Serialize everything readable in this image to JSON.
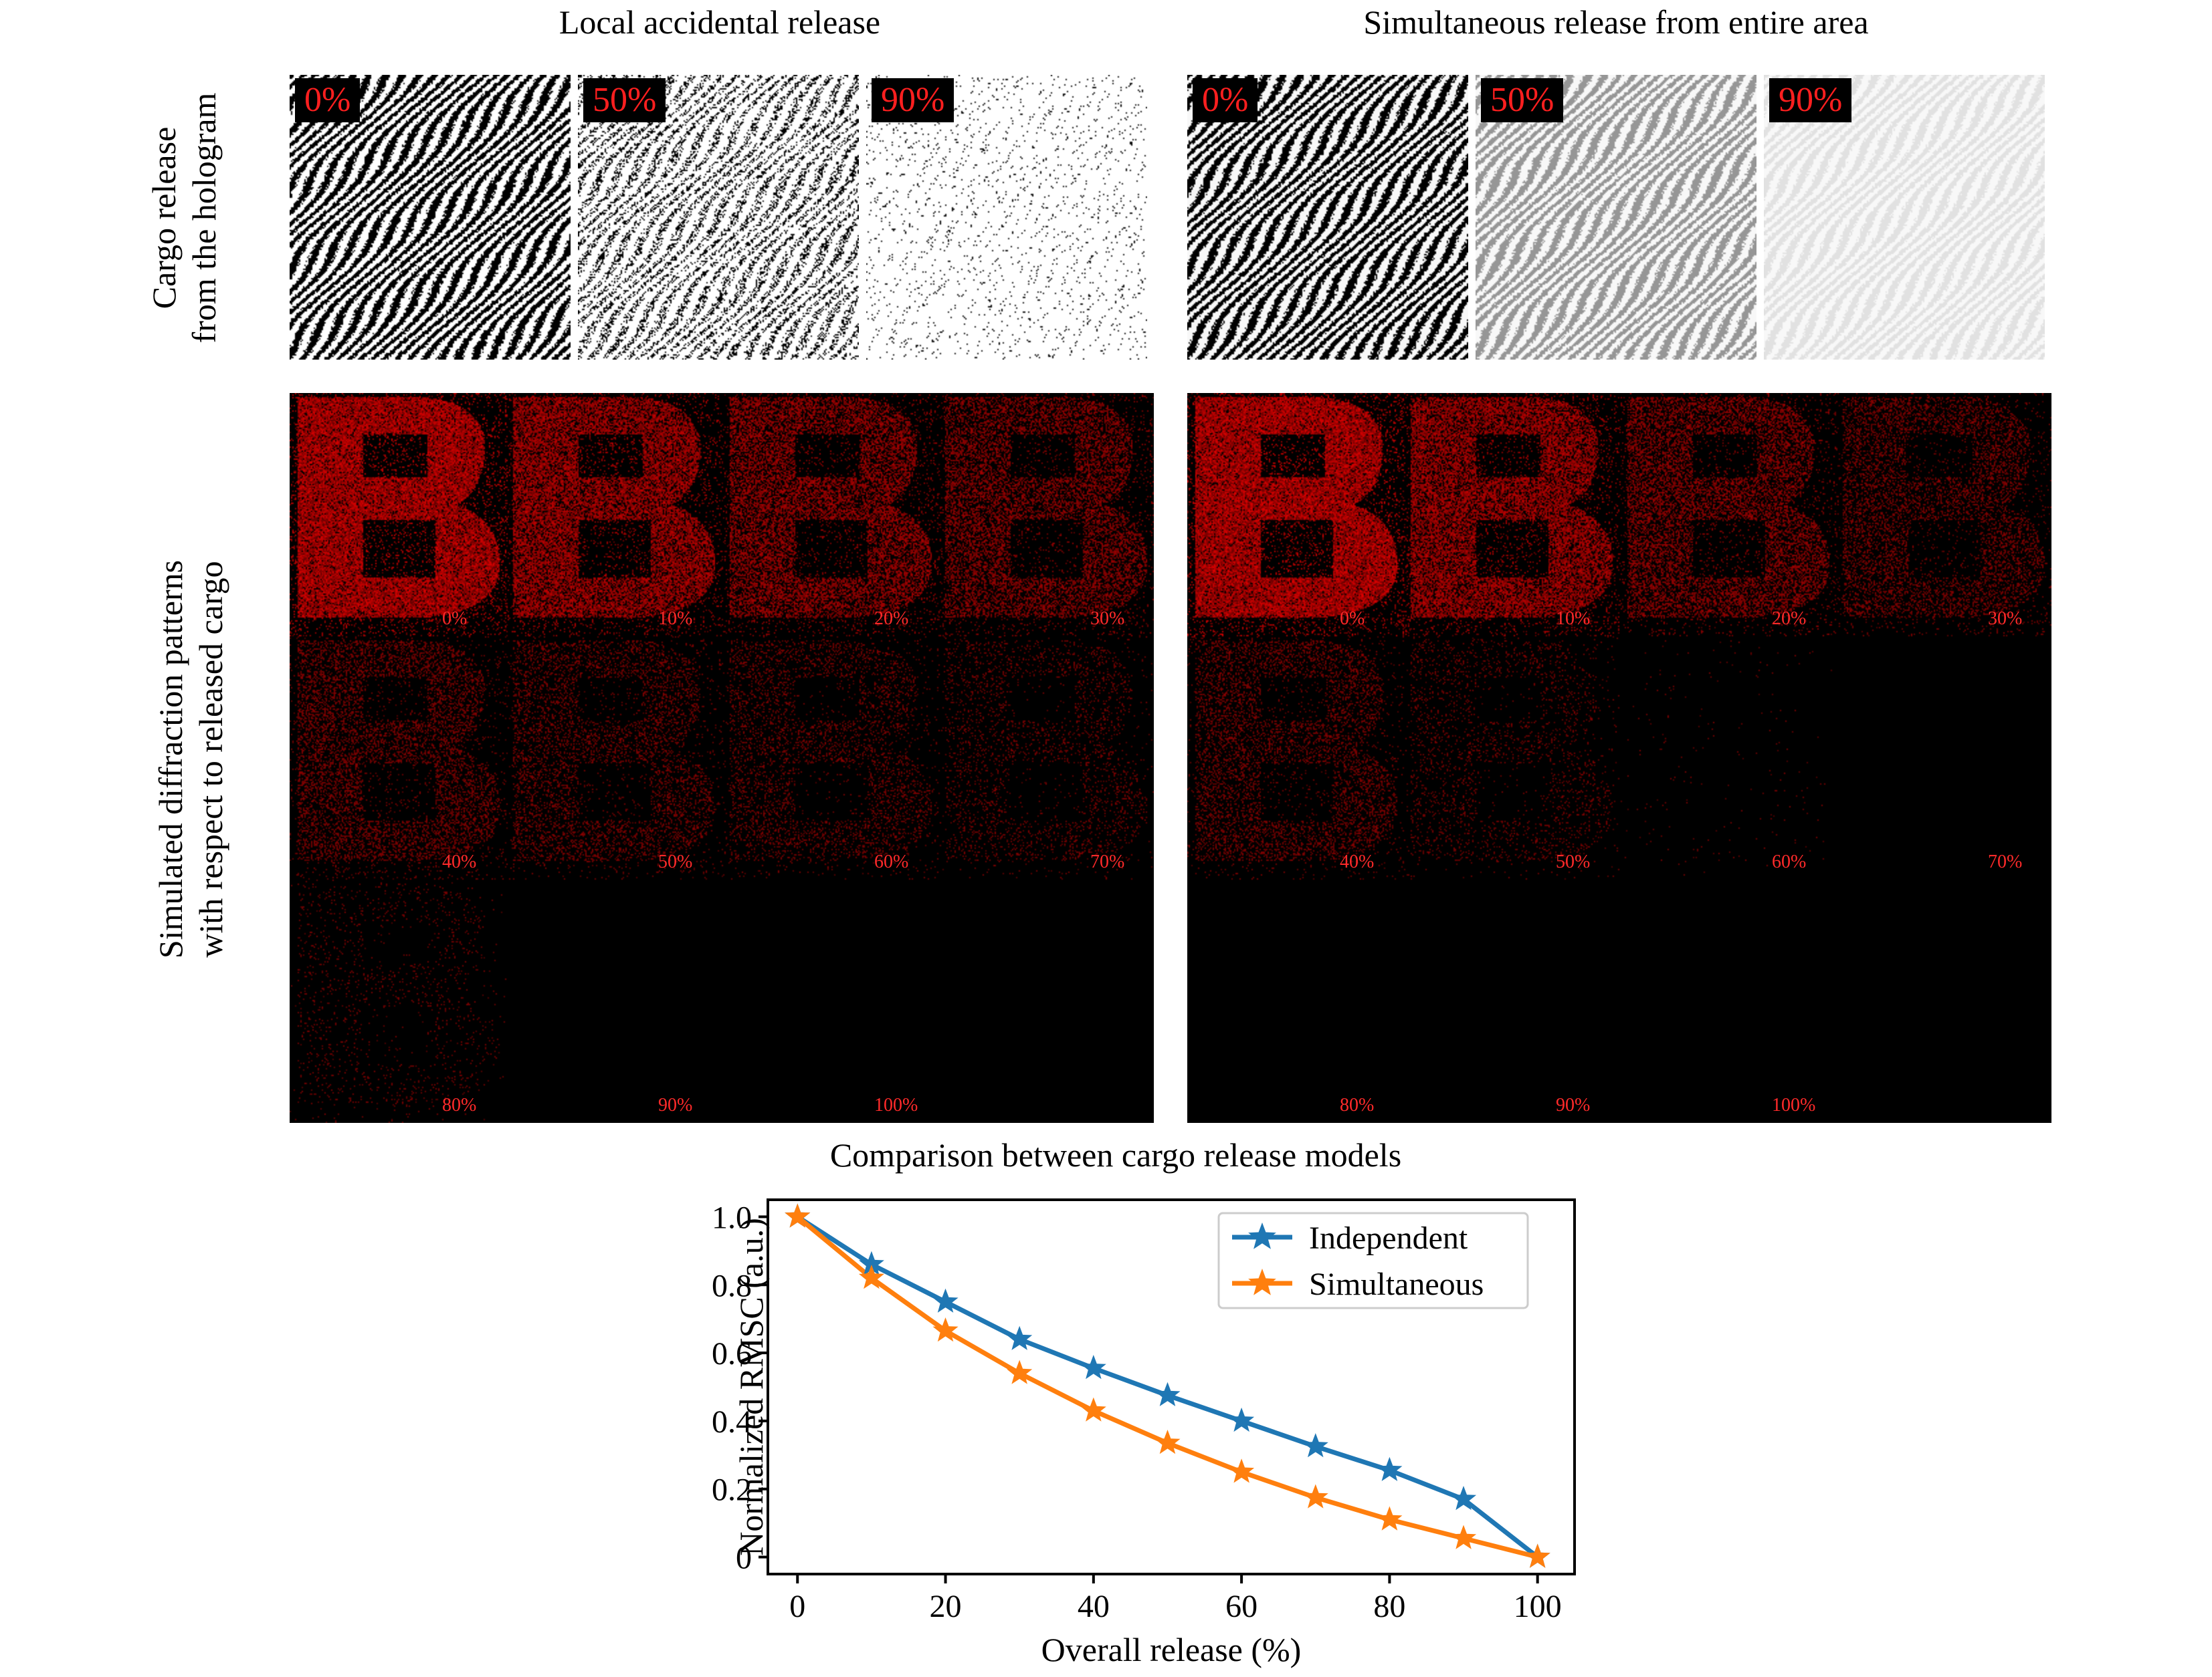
{
  "columns": {
    "left_title": "Local accidental release",
    "right_title": "Simultaneous release from entire area"
  },
  "rows": {
    "hologram_label_line1": "Cargo release",
    "hologram_label_line2": "from the hologram",
    "diffraction_label_line1": "Simulated diffraction patterns",
    "diffraction_label_line2": "with respect to released cargo"
  },
  "hologram_panels": {
    "local": [
      {
        "label": "0%",
        "release": 0.0
      },
      {
        "label": "50%",
        "release": 0.5
      },
      {
        "label": "90%",
        "release": 0.9
      }
    ],
    "simultaneous": [
      {
        "label": "0%",
        "release": 0.0
      },
      {
        "label": "50%",
        "release": 0.5
      },
      {
        "label": "90%",
        "release": 0.9
      }
    ]
  },
  "diffraction_labels": [
    "0%",
    "10%",
    "20%",
    "30%",
    "40%",
    "50%",
    "60%",
    "70%",
    "80%",
    "90%",
    "100%"
  ],
  "colors": {
    "badge_text": "#ff1f1f",
    "pattern_red": "#e00000",
    "independent": "#1f77b4",
    "simultaneous": "#ff7f0e"
  },
  "chart_data": {
    "type": "line",
    "title": "Comparison between cargo release models",
    "xlabel": "Overall release (%)",
    "ylabel": "Normalized RMSC (a.u.)",
    "xlim": [
      -4,
      105
    ],
    "ylim": [
      -0.05,
      1.05
    ],
    "xticks": [
      0,
      20,
      40,
      60,
      80,
      100
    ],
    "yticks": [
      0,
      0.2,
      0.4,
      0.6,
      0.8,
      1.0
    ],
    "ytick_labels": [
      "0",
      "0.2",
      "0.4",
      "0.6",
      "0.8",
      "1.0"
    ],
    "x": [
      0,
      10,
      20,
      30,
      40,
      50,
      60,
      70,
      80,
      90,
      100
    ],
    "series": [
      {
        "name": "Independent",
        "color": "#1f77b4",
        "marker": "star",
        "values": [
          1.0,
          0.86,
          0.75,
          0.64,
          0.555,
          0.475,
          0.4,
          0.325,
          0.255,
          0.17,
          0.0
        ]
      },
      {
        "name": "Simultaneous",
        "color": "#ff7f0e",
        "marker": "star",
        "values": [
          1.0,
          0.82,
          0.665,
          0.54,
          0.43,
          0.335,
          0.25,
          0.175,
          0.11,
          0.055,
          0.0
        ]
      }
    ],
    "legend": "top-right",
    "grid": false
  }
}
